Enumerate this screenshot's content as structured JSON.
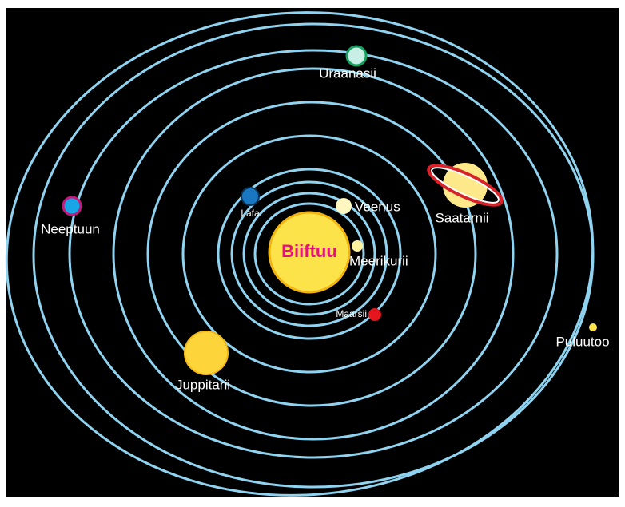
{
  "sun": {
    "label": "Biiftuu"
  },
  "planets": [
    {
      "label": "Meerikurii"
    },
    {
      "label": "Veenus"
    },
    {
      "label": "Lafa"
    },
    {
      "label": "Maarsii"
    },
    {
      "label": "Juppitarii"
    },
    {
      "label": "Saatarnii"
    },
    {
      "label": "Uraanasii"
    },
    {
      "label": "Neeptuun"
    },
    {
      "label": "Puluutoo"
    }
  ]
}
